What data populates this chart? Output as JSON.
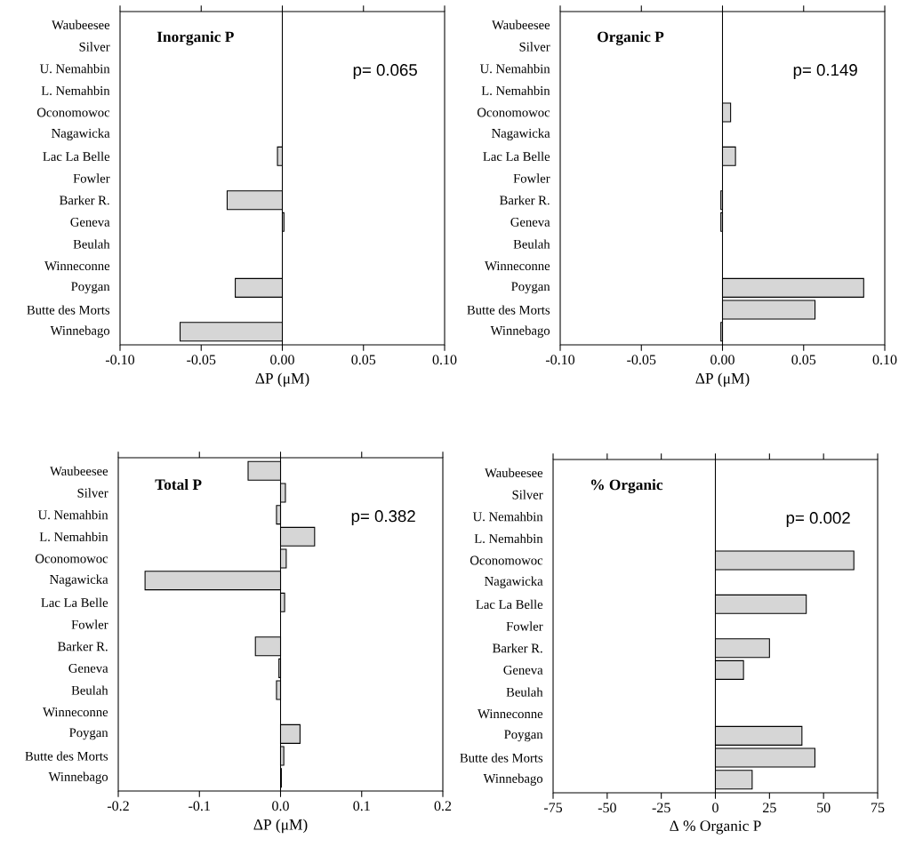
{
  "chart_data": [
    {
      "type": "bar",
      "orientation": "horizontal",
      "title": "Inorganic P",
      "xlabel": "ΔP (μM)",
      "annotations": [
        "p= 0.065"
      ],
      "color": "#d6d6d6",
      "categories": [
        "Waubeesee",
        "Silver",
        "U. Nemahbin",
        "L. Nemahbin",
        "Oconomowoc",
        "Nagawicka",
        "Lac La Belle",
        "Fowler",
        "Barker R.",
        "Geneva",
        "Beulah",
        "Winneconne",
        "Poygan",
        "Butte des Morts",
        "Winnebago"
      ],
      "values": [
        null,
        null,
        null,
        null,
        null,
        null,
        -0.003,
        null,
        -0.034,
        0.001,
        null,
        null,
        -0.029,
        null,
        -0.063
      ],
      "xlim": [
        -0.1,
        0.1
      ],
      "xticks": [
        {
          "value": -0.1,
          "label": "-0.10"
        },
        {
          "value": -0.05,
          "label": "-0.05"
        },
        {
          "value": 0,
          "label": "0.00"
        },
        {
          "value": 0.05,
          "label": "0.05"
        },
        {
          "value": 0.1,
          "label": "0.10"
        }
      ],
      "ref_lines": [
        {
          "axis": "x",
          "value": 0,
          "color": "#000000"
        }
      ]
    },
    {
      "type": "bar",
      "orientation": "horizontal",
      "title": "Organic P",
      "xlabel": "ΔP (μM)",
      "annotations": [
        "p= 0.149"
      ],
      "color": "#d6d6d6",
      "categories": [
        "Waubeesee",
        "Silver",
        "U. Nemahbin",
        "L. Nemahbin",
        "Oconomowoc",
        "Nagawicka",
        "Lac La Belle",
        "Fowler",
        "Barker R.",
        "Geneva",
        "Beulah",
        "Winneconne",
        "Poygan",
        "Butte des Morts",
        "Winnebago"
      ],
      "values": [
        null,
        null,
        null,
        null,
        0.005,
        null,
        0.008,
        null,
        -0.001,
        -0.001,
        null,
        null,
        0.087,
        0.057,
        -0.001
      ],
      "xlim": [
        -0.1,
        0.1
      ],
      "xticks": [
        {
          "value": -0.1,
          "label": "-0.10"
        },
        {
          "value": -0.05,
          "label": "-0.05"
        },
        {
          "value": 0,
          "label": "0.00"
        },
        {
          "value": 0.05,
          "label": "0.05"
        },
        {
          "value": 0.1,
          "label": "0.10"
        }
      ],
      "ref_lines": [
        {
          "axis": "x",
          "value": 0,
          "color": "#000000"
        }
      ]
    },
    {
      "type": "bar",
      "orientation": "horizontal",
      "title": "Total P",
      "xlabel": "ΔP (μM)",
      "annotations": [
        "p= 0.382"
      ],
      "color": "#d6d6d6",
      "categories": [
        "Waubeesee",
        "Silver",
        "U. Nemahbin",
        "L. Nemahbin",
        "Oconomowoc",
        "Nagawicka",
        "Lac La Belle",
        "Fowler",
        "Barker R.",
        "Geneva",
        "Beulah",
        "Winneconne",
        "Poygan",
        "Butte des Morts",
        "Winnebago"
      ],
      "values": [
        -0.04,
        0.006,
        -0.005,
        0.042,
        0.007,
        -0.167,
        0.005,
        null,
        -0.031,
        -0.002,
        -0.005,
        null,
        0.024,
        0.004,
        0.001
      ],
      "xlim": [
        -0.2,
        0.2
      ],
      "xticks": [
        {
          "value": -0.2,
          "label": "-0.2"
        },
        {
          "value": -0.1,
          "label": "-0.1"
        },
        {
          "value": 0,
          "label": "0.0"
        },
        {
          "value": 0.1,
          "label": "0.1"
        },
        {
          "value": 0.2,
          "label": "0.2"
        }
      ],
      "ref_lines": [
        {
          "axis": "x",
          "value": 0,
          "color": "#000000"
        }
      ]
    },
    {
      "type": "bar",
      "orientation": "horizontal",
      "title": "% Organic",
      "xlabel": "Δ % Organic P",
      "annotations": [
        "p= 0.002"
      ],
      "color": "#d6d6d6",
      "categories": [
        "Waubeesee",
        "Silver",
        "U. Nemahbin",
        "L. Nemahbin",
        "Oconomowoc",
        "Nagawicka",
        "Lac La Belle",
        "Fowler",
        "Barker R.",
        "Geneva",
        "Beulah",
        "Winneconne",
        "Poygan",
        "Butte des Morts",
        "Winnebago"
      ],
      "values": [
        null,
        null,
        null,
        null,
        64,
        null,
        42,
        null,
        25,
        13,
        null,
        null,
        40,
        46,
        17
      ],
      "xlim": [
        -75,
        75
      ],
      "xticks": [
        -75,
        -50,
        -25,
        0,
        25,
        50,
        75
      ],
      "ref_lines": [
        {
          "axis": "x",
          "value": 0,
          "color": "#000000"
        }
      ]
    }
  ]
}
